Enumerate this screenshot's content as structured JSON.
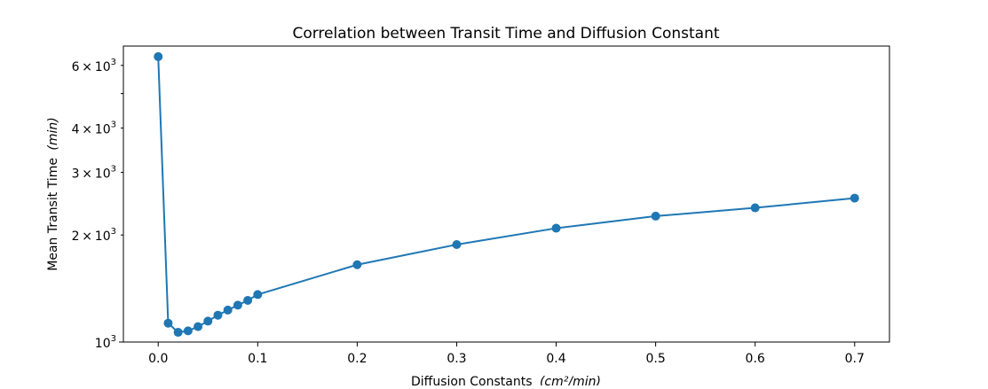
{
  "chart_data": {
    "type": "line",
    "title": "Correlation between Transit Time and Diffusion Constant",
    "xlabel": "Diffusion Constants",
    "xlabel_unit": "(cm²/min)",
    "ylabel": "Mean Transit Time",
    "ylabel_unit": "(min)",
    "y_scale": "log",
    "xlim": [
      -0.035,
      0.735
    ],
    "ylim": [
      1000,
      6800
    ],
    "x_ticks": [
      0.0,
      0.1,
      0.2,
      0.3,
      0.4,
      0.5,
      0.6,
      0.7
    ],
    "x_tick_labels": [
      "0.0",
      "0.1",
      "0.2",
      "0.3",
      "0.4",
      "0.5",
      "0.6",
      "0.7"
    ],
    "y_major_ticks": [
      1000
    ],
    "y_minor_ticks": [
      2000,
      3000,
      4000,
      5000,
      6000
    ],
    "y_tick_labels": [
      {
        "value": 1000,
        "mantissa": "",
        "exponent": "3"
      },
      {
        "value": 2000,
        "mantissa": "2",
        "exponent": "3"
      },
      {
        "value": 3000,
        "mantissa": "3",
        "exponent": "3"
      },
      {
        "value": 4000,
        "mantissa": "4",
        "exponent": "3"
      },
      {
        "value": 6000,
        "mantissa": "6",
        "exponent": "3"
      }
    ],
    "grid": false,
    "color": "#1f77b4",
    "marker": "circle",
    "x": [
      0.0,
      0.01,
      0.02,
      0.03,
      0.04,
      0.05,
      0.06,
      0.07,
      0.08,
      0.09,
      0.1,
      0.2,
      0.3,
      0.4,
      0.5,
      0.6,
      0.7
    ],
    "y": [
      6350,
      1130,
      1065,
      1075,
      1105,
      1145,
      1190,
      1230,
      1270,
      1310,
      1360,
      1650,
      1880,
      2090,
      2260,
      2385,
      2540
    ]
  }
}
